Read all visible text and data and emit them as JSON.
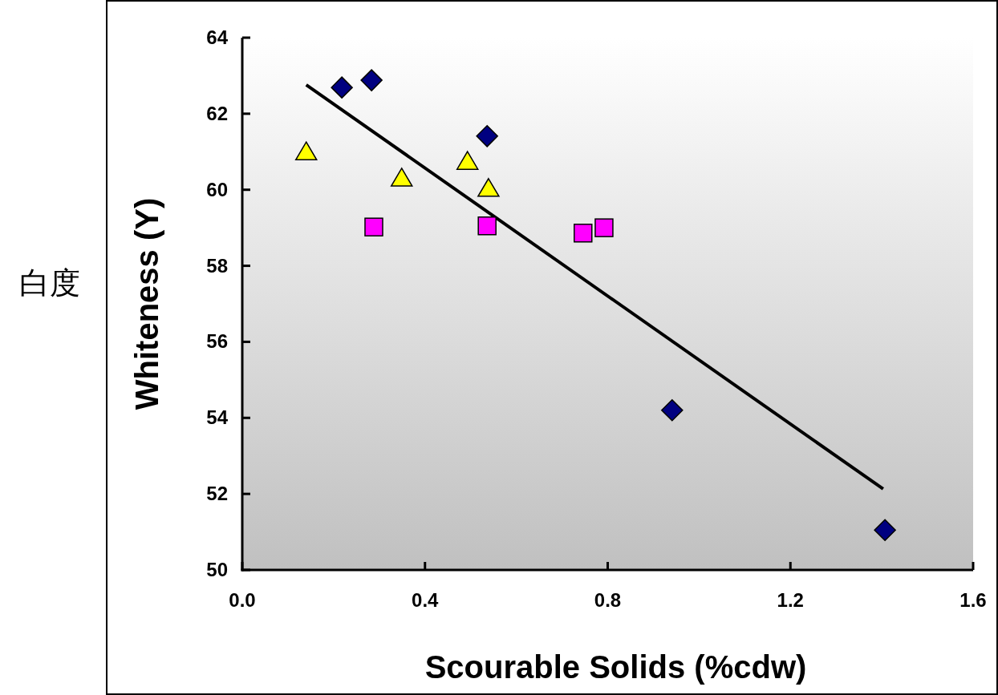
{
  "chart_data": {
    "type": "scatter",
    "xlabel": "Scourable Solids (%cdw)",
    "ylabel": "Whiteness (Y)",
    "annotations": [
      "白度"
    ],
    "xlim": [
      0,
      1.6
    ],
    "ylim": [
      50,
      64
    ],
    "xticks": [
      {
        "value": 0,
        "label": "0.0"
      },
      0.4,
      0.8,
      1.2,
      1.6
    ],
    "yticks": [
      50,
      52,
      54,
      56,
      58,
      60,
      62,
      64
    ],
    "grid": false,
    "series": [
      {
        "marker": "diamond",
        "color": "#000080",
        "x": [
          0.218,
          0.283,
          0.536,
          0.941,
          1.407
        ],
        "values": [
          62.69,
          62.88,
          61.41,
          54.2,
          51.05
        ]
      },
      {
        "marker": "triangle",
        "color": "#ffff00",
        "x": [
          0.14,
          0.349,
          0.493,
          0.539
        ],
        "values": [
          60.98,
          60.29,
          60.73,
          60.02
        ]
      },
      {
        "marker": "square",
        "color": "#ff00ff",
        "x": [
          0.288,
          0.536,
          0.746,
          0.792
        ],
        "values": [
          59.02,
          59.05,
          58.86,
          59.0
        ]
      },
      {
        "type": "line",
        "marker": "none",
        "color": "#000000",
        "x": [
          0.14,
          1.403
        ],
        "values": [
          62.76,
          52.13
        ]
      }
    ]
  }
}
